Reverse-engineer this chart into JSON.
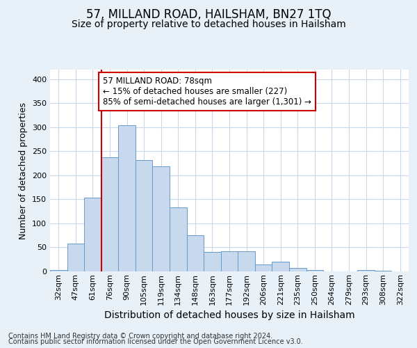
{
  "title": "57, MILLAND ROAD, HAILSHAM, BN27 1TQ",
  "subtitle": "Size of property relative to detached houses in Hailsham",
  "xlabel": "Distribution of detached houses by size in Hailsham",
  "ylabel": "Number of detached properties",
  "categories": [
    "32sqm",
    "47sqm",
    "61sqm",
    "76sqm",
    "90sqm",
    "105sqm",
    "119sqm",
    "134sqm",
    "148sqm",
    "163sqm",
    "177sqm",
    "192sqm",
    "206sqm",
    "221sqm",
    "235sqm",
    "250sqm",
    "264sqm",
    "279sqm",
    "293sqm",
    "308sqm",
    "322sqm"
  ],
  "values": [
    3,
    58,
    153,
    238,
    304,
    232,
    219,
    133,
    76,
    40,
    42,
    42,
    14,
    21,
    7,
    3,
    0,
    0,
    3,
    2,
    0
  ],
  "bar_color": "#c8d9ee",
  "bar_edge_color": "#6699cc",
  "vline_x_index": 3,
  "vline_color": "#cc0000",
  "annotation_text": "57 MILLAND ROAD: 78sqm\n← 15% of detached houses are smaller (227)\n85% of semi-detached houses are larger (1,301) →",
  "annotation_box_facecolor": "#ffffff",
  "annotation_box_edgecolor": "#cc0000",
  "ylim": [
    0,
    420
  ],
  "yticks": [
    0,
    50,
    100,
    150,
    200,
    250,
    300,
    350,
    400
  ],
  "grid_color": "#c8d8e8",
  "figure_bg": "#e8f0f8",
  "axes_bg": "#ffffff",
  "footer_line1": "Contains HM Land Registry data © Crown copyright and database right 2024.",
  "footer_line2": "Contains public sector information licensed under the Open Government Licence v3.0.",
  "title_fontsize": 12,
  "subtitle_fontsize": 10,
  "xlabel_fontsize": 10,
  "ylabel_fontsize": 9,
  "tick_fontsize": 8,
  "annotation_fontsize": 8.5,
  "footer_fontsize": 7
}
